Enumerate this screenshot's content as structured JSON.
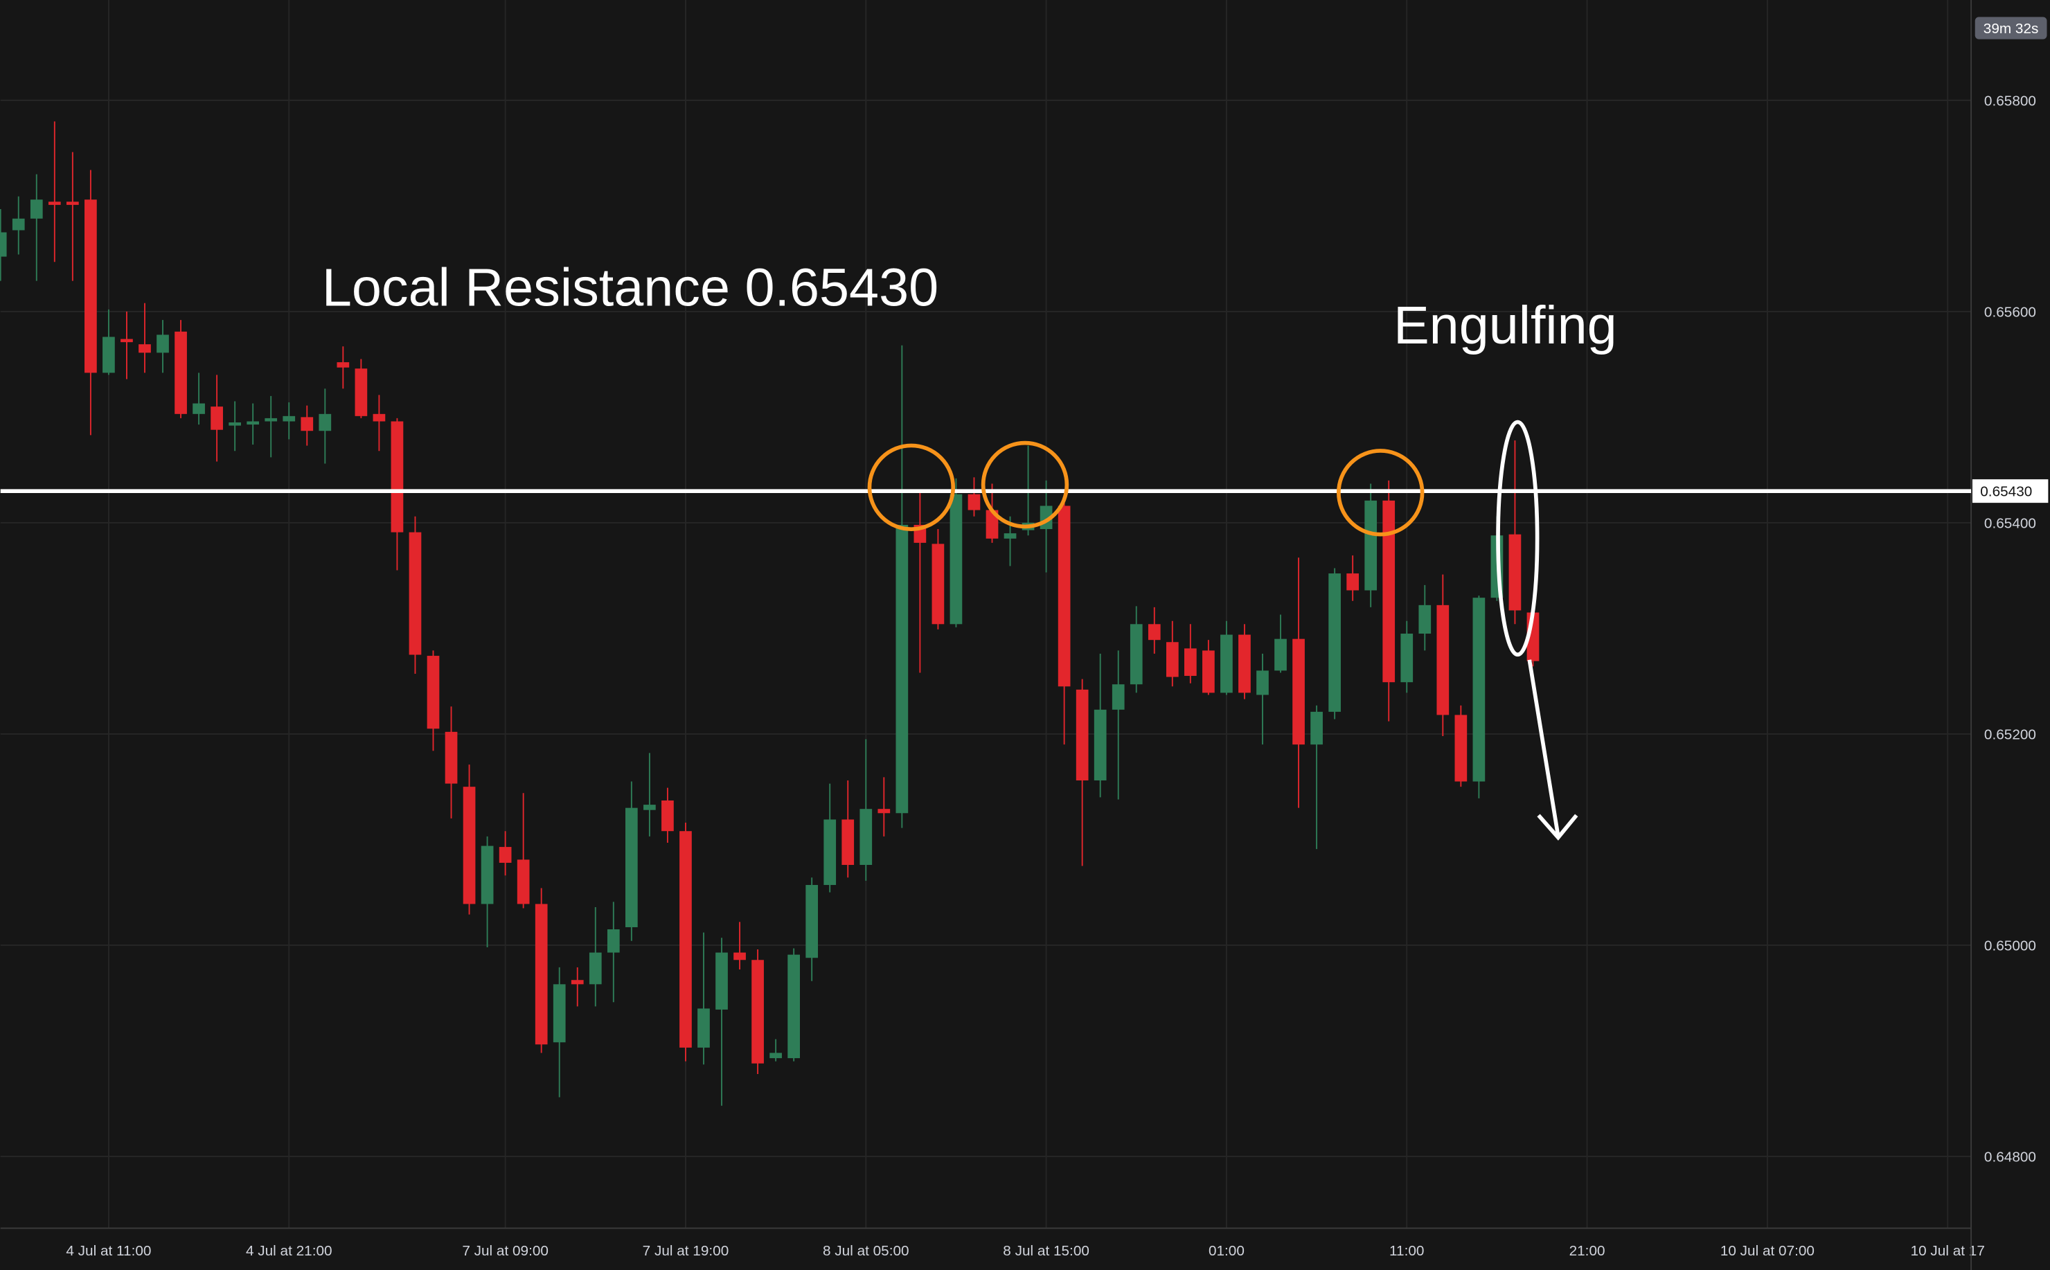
{
  "chart_data": {
    "type": "candlestick",
    "timer": "39m 32s",
    "annotations": [
      "Local Resistance 0.65430",
      "Engulfing"
    ],
    "hlines": [
      {
        "value": 0.6543,
        "label": "0.65430"
      }
    ],
    "up_color": "#2e7d57",
    "down_color": "#e3262c",
    "grid": true,
    "xlim": [
      0,
      109.3
    ],
    "xticks": [
      {
        "value": 6,
        "label": "4 Jul at 11:00"
      },
      {
        "value": 16,
        "label": "4 Jul at 21:00"
      },
      {
        "value": 28,
        "label": "7 Jul at 09:00"
      },
      {
        "value": 38,
        "label": "7 Jul at 19:00"
      },
      {
        "value": 48,
        "label": "8 Jul at 05:00"
      },
      {
        "value": 58,
        "label": "8 Jul at 15:00"
      },
      {
        "value": 68,
        "label": "01:00"
      },
      {
        "value": 78,
        "label": "11:00"
      },
      {
        "value": 88,
        "label": "21:00"
      },
      {
        "value": 98,
        "label": "10 Jul at 07:00"
      },
      {
        "value": 108,
        "label": "10 Jul at 17"
      }
    ],
    "ylim": [
      0.64732,
      0.65895
    ],
    "yticks": [
      {
        "value": 0.648,
        "label": "0.64800"
      },
      {
        "value": 0.65,
        "label": "0.65000"
      },
      {
        "value": 0.652,
        "label": "0.65200"
      },
      {
        "value": 0.654,
        "label": "0.65400"
      },
      {
        "value": 0.656,
        "label": "0.65600"
      },
      {
        "value": 0.658,
        "label": "0.65800"
      }
    ],
    "open": [
      0.65652,
      0.65677,
      0.65688,
      0.65704,
      0.65704,
      0.65706,
      0.65542,
      0.65574,
      0.65569,
      0.65561,
      0.65581,
      0.65503,
      0.6551,
      0.65492,
      0.65493,
      0.65496,
      0.65496,
      0.655,
      0.65487,
      0.65552,
      0.65546,
      0.65503,
      0.65496,
      0.65391,
      0.65274,
      0.65202,
      0.6515,
      0.65039,
      0.65093,
      0.65081,
      0.65039,
      0.64908,
      0.64967,
      0.64963,
      0.64993,
      0.65017,
      0.65128,
      0.65137,
      0.65108,
      0.64903,
      0.64939,
      0.64993,
      0.64986,
      0.64893,
      0.64893,
      0.64988,
      0.65057,
      0.65119,
      0.65076,
      0.65129,
      0.65125,
      0.65398,
      0.6538,
      0.65304,
      0.65427,
      0.65412,
      0.65385,
      0.65393,
      0.65394,
      0.65416,
      0.65242,
      0.65156,
      0.65223,
      0.65247,
      0.65304,
      0.65287,
      0.65281,
      0.65279,
      0.65239,
      0.65294,
      0.65237,
      0.6526,
      0.6529,
      0.6519,
      0.65221,
      0.65352,
      0.65336,
      0.65421,
      0.65249,
      0.65295,
      0.65322,
      0.65218,
      0.65155,
      0.65329,
      0.65389,
      0.65315
    ],
    "high": [
      0.65697,
      0.65709,
      0.6573,
      0.6578,
      0.65751,
      0.65734,
      0.65602,
      0.656,
      0.65608,
      0.65592,
      0.65592,
      0.65542,
      0.6554,
      0.65515,
      0.65513,
      0.6552,
      0.65514,
      0.65511,
      0.65527,
      0.65567,
      0.65555,
      0.65521,
      0.65499,
      0.65406,
      0.65279,
      0.65226,
      0.65171,
      0.65103,
      0.65108,
      0.65144,
      0.65054,
      0.64979,
      0.64979,
      0.65036,
      0.65041,
      0.65155,
      0.65182,
      0.65149,
      0.65116,
      0.65012,
      0.65007,
      0.65022,
      0.64996,
      0.64911,
      0.64997,
      0.65064,
      0.65153,
      0.65156,
      0.65195,
      0.65159,
      0.65568,
      0.65431,
      0.65394,
      0.65442,
      0.65443,
      0.65437,
      0.65406,
      0.65473,
      0.6544,
      0.65419,
      0.65252,
      0.65276,
      0.65279,
      0.65321,
      0.6532,
      0.65307,
      0.65304,
      0.65289,
      0.65307,
      0.65304,
      0.65276,
      0.65313,
      0.65367,
      0.65227,
      0.65357,
      0.65369,
      0.65437,
      0.6544,
      0.65307,
      0.65341,
      0.65351,
      0.65227,
      0.65331,
      0.65406,
      0.65478,
      0.65318
    ],
    "low": [
      0.65629,
      0.65654,
      0.65629,
      0.65647,
      0.65629,
      0.65483,
      0.6554,
      0.65536,
      0.65542,
      0.65542,
      0.65499,
      0.65493,
      0.65458,
      0.65468,
      0.65474,
      0.65462,
      0.65479,
      0.65473,
      0.65456,
      0.65527,
      0.65499,
      0.65468,
      0.65355,
      0.65257,
      0.65184,
      0.6512,
      0.65029,
      0.64998,
      0.65066,
      0.65035,
      0.64898,
      0.64856,
      0.64942,
      0.64942,
      0.64946,
      0.65004,
      0.65103,
      0.65097,
      0.6489,
      0.64887,
      0.64848,
      0.64977,
      0.64878,
      0.6489,
      0.6489,
      0.64966,
      0.6505,
      0.65064,
      0.65061,
      0.65103,
      0.65111,
      0.65258,
      0.65299,
      0.65301,
      0.65406,
      0.65381,
      0.65359,
      0.65388,
      0.65353,
      0.6519,
      0.65075,
      0.6514,
      0.65138,
      0.65239,
      0.65276,
      0.65245,
      0.65248,
      0.65237,
      0.65237,
      0.65233,
      0.6519,
      0.65258,
      0.6513,
      0.65091,
      0.65214,
      0.65326,
      0.6532,
      0.65212,
      0.65239,
      0.65279,
      0.65198,
      0.6515,
      0.65139,
      0.65326,
      0.65304,
      0.65264
    ],
    "close": [
      0.65675,
      0.65688,
      0.65706,
      0.65701,
      0.65701,
      0.65542,
      0.65576,
      0.65571,
      0.65561,
      0.65578,
      0.65503,
      0.65513,
      0.65488,
      0.65495,
      0.65496,
      0.65499,
      0.65501,
      0.65487,
      0.65503,
      0.65547,
      0.65501,
      0.65496,
      0.65391,
      0.65275,
      0.65205,
      0.65153,
      0.65039,
      0.65094,
      0.65078,
      0.65039,
      0.64906,
      0.64963,
      0.64963,
      0.64993,
      0.65015,
      0.6513,
      0.65133,
      0.65108,
      0.64903,
      0.6494,
      0.64993,
      0.64986,
      0.64888,
      0.64898,
      0.64991,
      0.65057,
      0.65119,
      0.65076,
      0.65129,
      0.65125,
      0.65398,
      0.65381,
      0.65304,
      0.65427,
      0.65412,
      0.65385,
      0.6539,
      0.654,
      0.65416,
      0.65245,
      0.65156,
      0.65223,
      0.65247,
      0.65304,
      0.65289,
      0.65254,
      0.65255,
      0.65239,
      0.65294,
      0.65239,
      0.6526,
      0.6529,
      0.6519,
      0.65221,
      0.65352,
      0.65336,
      0.65421,
      0.65249,
      0.65295,
      0.65322,
      0.65218,
      0.65155,
      0.65329,
      0.65388,
      0.65317,
      0.65269
    ]
  }
}
